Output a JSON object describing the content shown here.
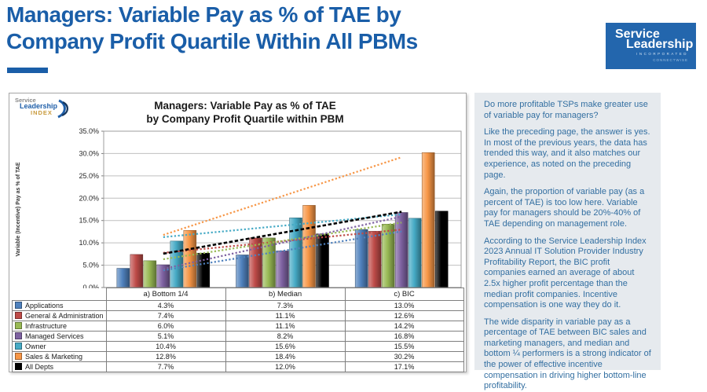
{
  "header": {
    "title_line1": "Managers: Variable Pay as % of TAE by",
    "title_line2": "Company Profit Quartile Within All PBMs"
  },
  "brand_logo": {
    "line1": "Service",
    "line2": "Leadership",
    "line3": "INCORPORATED",
    "tagline": "CONNECTWISE"
  },
  "chart_logo": {
    "line1": "Service",
    "line2": "Leadership",
    "line3": "INDEX"
  },
  "chart_data": {
    "type": "bar",
    "title_line1": "Managers: Variable Pay as % of TAE",
    "title_line2": "by Company Profit Quartile within PBM",
    "ylabel": "Variable (Incentive) Pay as % of TAE",
    "categories": [
      "a) Bottom 1/4",
      "b) Median",
      "c) BIC"
    ],
    "series": [
      {
        "name": "Applications",
        "color": "#4F81BD",
        "values": [
          4.3,
          7.3,
          13.0
        ]
      },
      {
        "name": "General & Administration",
        "color": "#BE4B48",
        "values": [
          7.4,
          11.1,
          12.6
        ]
      },
      {
        "name": "Infrastructure",
        "color": "#98B954",
        "values": [
          6.0,
          11.1,
          14.2
        ]
      },
      {
        "name": "Managed Services",
        "color": "#7E62A1",
        "values": [
          5.1,
          8.2,
          16.8
        ]
      },
      {
        "name": "Owner",
        "color": "#46AAC5",
        "values": [
          10.4,
          15.6,
          15.5
        ]
      },
      {
        "name": "Sales & Marketing",
        "color": "#F79646",
        "values": [
          12.8,
          18.4,
          30.2
        ]
      },
      {
        "name": "All Depts",
        "color": "#000000",
        "values": [
          7.7,
          12.0,
          17.1
        ]
      }
    ],
    "ylim": [
      0,
      35
    ],
    "ytick_step": 5,
    "grid": true,
    "legend_position": "table-below",
    "trendlines": true,
    "value_format": "percent-one-decimal"
  },
  "panel": {
    "paragraphs": [
      "Do more profitable TSPs make greater use of variable pay for managers?",
      "Like the preceding page, the answer is yes. In most of the previous years, the data has trended this way, and it also matches our experience, as noted on the preceding page.",
      "Again, the proportion of variable pay (as a percent of TAE) is too low here. Variable pay for managers should be 20%-40% of TAE depending on management role.",
      "According to the Service Leadership Index 2023 Annual IT Solution Provider Industry Profitability Report, the BIC profit companies earned an average of about 2.5x higher profit percentage than the median profit companies. Incentive compensation is one way they do it.",
      "The wide disparity in variable pay as a percentage of TAE between BIC sales and marketing managers, and median and bottom ¼ performers is a strong indicator of the power of effective incentive compensation in driving higher bottom-line profitability."
    ]
  },
  "colors": {
    "accent_blue": "#1A5EA8",
    "logo_background": "#2366AD",
    "panel_background": "#E6EAEE",
    "panel_text": "#336FA1",
    "gridline": "#BFBFBF",
    "axis": "#7F7F7F"
  }
}
